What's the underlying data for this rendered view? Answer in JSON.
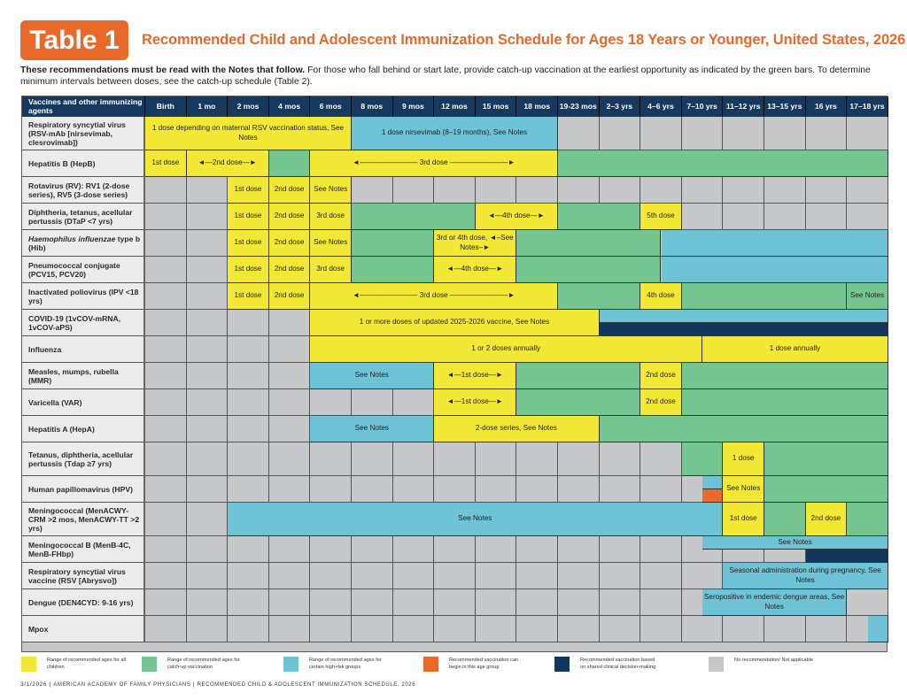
{
  "header": {
    "badge": "Table 1",
    "title": "Recommended Child and Adolescent Immunization Schedule for Ages 18 Years or Younger, United States, 2026",
    "intro_bold": "These recommendations must be read with the Notes that follow.",
    "intro_rest": " For those who fall behind or start late, provide catch-up vaccination at the earliest opportunity as indicated by the green bars. To determine minimum intervals between doses, see the catch-up schedule (Table 2)."
  },
  "colors": {
    "yellow": "#f2e835",
    "green": "#76c691",
    "blue": "#6fc3d6",
    "orange": "#e8692a",
    "navy": "#12375c",
    "gray": "#c7c8ca",
    "header_bg": "#163a5f"
  },
  "table": {
    "first_header": "Vaccines and other immunizing agents",
    "columns": [
      "Birth",
      "1 mo",
      "2 mos",
      "4 mos",
      "6 mos",
      "8 mos",
      "9 mos",
      "12 mos",
      "15 mos",
      "18 mos",
      "19-23 mos",
      "2–3 yrs",
      "4–6 yrs",
      "7–10 yrs",
      "11–12 yrs",
      "13–15 yrs",
      "16 yrs",
      "17–18 yrs"
    ],
    "rows": [
      {
        "label": "Respiratory syncytial virus (RSV-mAb [nirsevimab, clesrovimab])",
        "bars": [
          {
            "from": 0,
            "to": 5,
            "color": "y",
            "text": "1 dose depending on maternal RSV vaccination status, See Notes"
          },
          {
            "from": 5,
            "to": 10,
            "color": "b",
            "text": "1 dose nirsevimab (8–19 months), See Notes"
          }
        ]
      },
      {
        "label": "Hepatitis B (HepB)",
        "bars": [
          {
            "from": 0,
            "to": 1,
            "color": "y",
            "text": "1st dose"
          },
          {
            "from": 1,
            "to": 3,
            "color": "y",
            "text": "◄—2nd dose—►"
          },
          {
            "from": 3,
            "to": 4,
            "color": "g",
            "text": ""
          },
          {
            "from": 4,
            "to": 10,
            "color": "y",
            "text": "◄———————— 3rd dose ————————►"
          },
          {
            "from": 10,
            "to": 18,
            "color": "g",
            "text": ""
          }
        ]
      },
      {
        "label": "Rotavirus (RV): RV1 (2-dose series), RV5 (3-dose series)",
        "bars": [
          {
            "from": 2,
            "to": 3,
            "color": "y",
            "text": "1st dose"
          },
          {
            "from": 3,
            "to": 4,
            "color": "y",
            "text": "2nd dose"
          },
          {
            "from": 4,
            "to": 5,
            "color": "y",
            "text": "See Notes"
          }
        ]
      },
      {
        "label": "Diphtheria, tetanus, acellular pertussis (DTaP <7 yrs)",
        "bars": [
          {
            "from": 2,
            "to": 3,
            "color": "y",
            "text": "1st dose"
          },
          {
            "from": 3,
            "to": 4,
            "color": "y",
            "text": "2nd dose"
          },
          {
            "from": 4,
            "to": 5,
            "color": "y",
            "text": "3rd dose"
          },
          {
            "from": 5,
            "to": 8,
            "color": "g",
            "text": ""
          },
          {
            "from": 8,
            "to": 10,
            "color": "y",
            "text": "◄—4th dose—►"
          },
          {
            "from": 10,
            "to": 12,
            "color": "g",
            "text": ""
          },
          {
            "from": 12,
            "to": 13,
            "color": "y",
            "text": "5th dose"
          }
        ]
      },
      {
        "label": "Haemophilus influenzae type b (Hib)",
        "italic_part": "Haemophilus influenzae",
        "bars": [
          {
            "from": 2,
            "to": 3,
            "color": "y",
            "text": "1st dose"
          },
          {
            "from": 3,
            "to": 4,
            "color": "y",
            "text": "2nd dose"
          },
          {
            "from": 4,
            "to": 5,
            "color": "y",
            "text": "See Notes"
          },
          {
            "from": 5,
            "to": 7,
            "color": "g",
            "text": ""
          },
          {
            "from": 7,
            "to": 9,
            "color": "y",
            "text": "3rd or 4th dose, ◄–See Notes–►"
          },
          {
            "from": 9,
            "to": 12.5,
            "color": "g",
            "text": ""
          },
          {
            "from": 12.5,
            "to": 18,
            "color": "b",
            "text": ""
          }
        ]
      },
      {
        "label": "Pneumococcal conjugate (PCV15, PCV20)",
        "bars": [
          {
            "from": 2,
            "to": 3,
            "color": "y",
            "text": "1st dose"
          },
          {
            "from": 3,
            "to": 4,
            "color": "y",
            "text": "2nd dose"
          },
          {
            "from": 4,
            "to": 5,
            "color": "y",
            "text": "3rd dose"
          },
          {
            "from": 5,
            "to": 7,
            "color": "g",
            "text": ""
          },
          {
            "from": 7,
            "to": 9,
            "color": "y",
            "text": "◄—4th dose—►"
          },
          {
            "from": 9,
            "to": 12.5,
            "color": "g",
            "text": ""
          },
          {
            "from": 12.5,
            "to": 18,
            "color": "b",
            "text": ""
          }
        ]
      },
      {
        "label": "Inactivated poliovirus (IPV <18 yrs)",
        "bars": [
          {
            "from": 2,
            "to": 3,
            "color": "y",
            "text": "1st dose"
          },
          {
            "from": 3,
            "to": 4,
            "color": "y",
            "text": "2nd dose"
          },
          {
            "from": 4,
            "to": 10,
            "color": "y",
            "text": "◄———————— 3rd dose ————————►"
          },
          {
            "from": 10,
            "to": 12,
            "color": "g",
            "text": ""
          },
          {
            "from": 12,
            "to": 13,
            "color": "y",
            "text": "4th dose"
          },
          {
            "from": 13,
            "to": 17,
            "color": "g",
            "text": ""
          },
          {
            "from": 17,
            "to": 18,
            "color": "g",
            "text": "See Notes"
          }
        ]
      },
      {
        "label": "COVID-19 (1vCOV-mRNA, 1vCOV-aPS)",
        "bars": [
          {
            "from": 4,
            "to": 11,
            "color": "y",
            "text": "1 or more doses of updated 2025-2026 vaccine, See Notes"
          },
          {
            "from": 11,
            "to": 18,
            "color": "b",
            "text": "",
            "half": "top"
          },
          {
            "from": 11,
            "to": 18,
            "color": "n",
            "text": "",
            "half": "bottom"
          }
        ]
      },
      {
        "label": "Influenza",
        "bars": [
          {
            "from": 4,
            "to": 13.5,
            "color": "y",
            "text": "1 or 2 doses annually"
          },
          {
            "from": 13.5,
            "to": 18,
            "color": "y",
            "text": "1 dose annually"
          }
        ]
      },
      {
        "label": "Measles, mumps, rubella (MMR)",
        "bars": [
          {
            "from": 4,
            "to": 7,
            "color": "b",
            "text": "See Notes"
          },
          {
            "from": 7,
            "to": 9,
            "color": "y",
            "text": "◄—1st dose—►"
          },
          {
            "from": 9,
            "to": 12,
            "color": "g",
            "text": ""
          },
          {
            "from": 12,
            "to": 13,
            "color": "y",
            "text": "2nd dose"
          },
          {
            "from": 13,
            "to": 18,
            "color": "g",
            "text": ""
          }
        ]
      },
      {
        "label": "Varicella (VAR)",
        "bars": [
          {
            "from": 7,
            "to": 9,
            "color": "y",
            "text": "◄—1st dose—►"
          },
          {
            "from": 9,
            "to": 12,
            "color": "g",
            "text": ""
          },
          {
            "from": 12,
            "to": 13,
            "color": "y",
            "text": "2nd dose"
          },
          {
            "from": 13,
            "to": 18,
            "color": "g",
            "text": ""
          }
        ]
      },
      {
        "label": "Hepatitis A (HepA)",
        "bars": [
          {
            "from": 4,
            "to": 7,
            "color": "b",
            "text": "See Notes"
          },
          {
            "from": 7,
            "to": 11,
            "color": "y",
            "text": "2-dose series, See Notes"
          },
          {
            "from": 11,
            "to": 18,
            "color": "g",
            "text": ""
          }
        ]
      },
      {
        "label": "Tetanus, diphtheria, acellular pertussis (Tdap ≥7 yrs)",
        "bars": [
          {
            "from": 13,
            "to": 14,
            "color": "g",
            "text": ""
          },
          {
            "from": 14,
            "to": 15,
            "color": "y",
            "text": "1 dose"
          },
          {
            "from": 15,
            "to": 18,
            "color": "g",
            "text": ""
          }
        ]
      },
      {
        "label": "Human papillomavirus (HPV)",
        "bars": [
          {
            "from": 13.5,
            "to": 14,
            "color": "b",
            "text": "",
            "half": "top"
          },
          {
            "from": 13.5,
            "to": 14,
            "color": "o",
            "text": "",
            "half": "bottom"
          },
          {
            "from": 14,
            "to": 15,
            "color": "y",
            "text": "See Notes"
          },
          {
            "from": 15,
            "to": 18,
            "color": "g",
            "text": ""
          }
        ]
      },
      {
        "label": "Meningococcal (MenACWY-CRM >2 mos, MenACWY-TT >2 yrs)",
        "bars": [
          {
            "from": 2,
            "to": 14,
            "color": "b",
            "text": "See Notes"
          },
          {
            "from": 14,
            "to": 15,
            "color": "y",
            "text": "1st dose"
          },
          {
            "from": 15,
            "to": 16,
            "color": "g",
            "text": ""
          },
          {
            "from": 16,
            "to": 17,
            "color": "y",
            "text": "2nd dose"
          },
          {
            "from": 17,
            "to": 18,
            "color": "g",
            "text": ""
          }
        ]
      },
      {
        "label": "Meningococcal B (MenB-4C, MenB-FHbp)",
        "bars": [
          {
            "from": 13.5,
            "to": 18,
            "color": "b",
            "text": "See Notes",
            "half": "top"
          },
          {
            "from": 16,
            "to": 18,
            "color": "n",
            "text": "",
            "half": "bottom"
          }
        ]
      },
      {
        "label": "Respiratory syncytial virus vaccine (RSV [Abrysvo])",
        "bars": [
          {
            "from": 14,
            "to": 18,
            "color": "b",
            "text": "Seasonal administration during pregnancy, See Notes"
          }
        ]
      },
      {
        "label": "Dengue (DEN4CYD: 9-16 yrs)",
        "bars": [
          {
            "from": 13.5,
            "to": 17,
            "color": "b",
            "text": "Seropositive in endemic dengue areas, See Notes"
          }
        ]
      },
      {
        "label": "Mpox",
        "bars": [
          {
            "from": 17.5,
            "to": 18,
            "color": "b",
            "text": ""
          }
        ]
      }
    ]
  },
  "legend": [
    {
      "color": "y",
      "text": "Range of recommended ages for all children"
    },
    {
      "color": "g",
      "text": "Range of recommended ages for catch-up vaccination"
    },
    {
      "color": "b",
      "text": "Range of recommended ages for certain high-risk groups"
    },
    {
      "color": "o",
      "text": "Recommended vaccination can begin in this age group"
    },
    {
      "color": "n",
      "text": "Recommended vaccination based on shared clinical decision-making"
    },
    {
      "color": "gray",
      "text": "No recommendation/ Not applicable"
    }
  ],
  "footer": {
    "date": "3/1/2026",
    "org": "American Academy of Family Physicians",
    "doc": "Recommended Child & Adolescent Immunization Schedule, 2026"
  }
}
